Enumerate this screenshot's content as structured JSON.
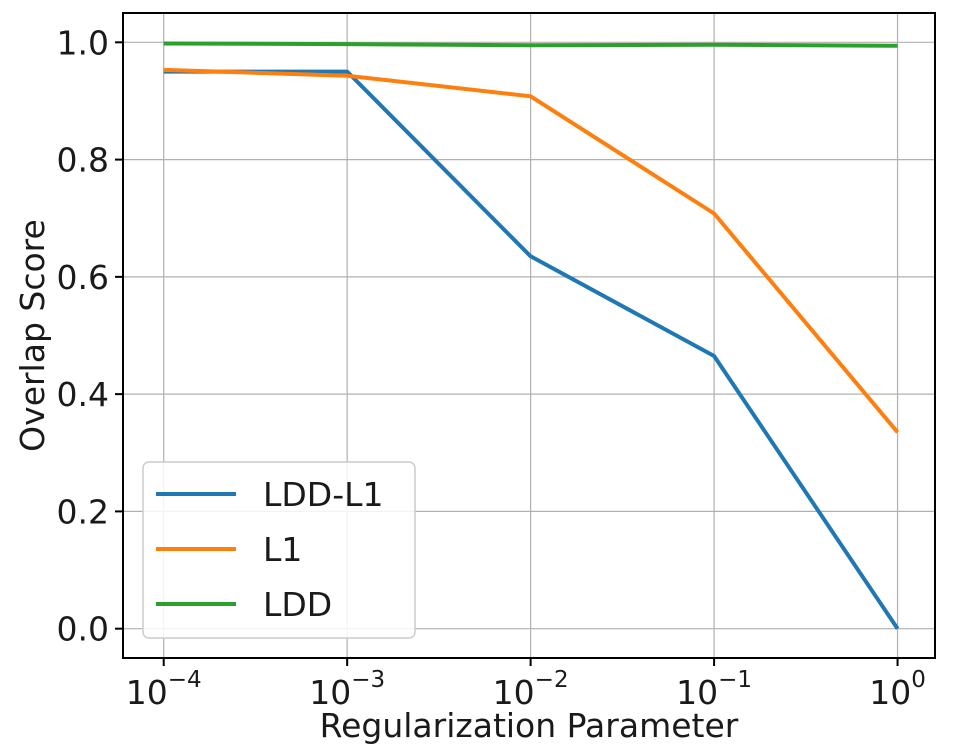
{
  "chart_data": {
    "type": "line",
    "xlabel": "Regularization Parameter",
    "ylabel": "Overlap Score",
    "xscale": "log",
    "x": [
      0.0001,
      0.001,
      0.01,
      0.1,
      1
    ],
    "xlim": [
      6e-05,
      1.6
    ],
    "ylim": [
      -0.05,
      1.05
    ],
    "x_ticks": [
      {
        "base": "10",
        "exp": "−4"
      },
      {
        "base": "10",
        "exp": "−3"
      },
      {
        "base": "10",
        "exp": "−2"
      },
      {
        "base": "10",
        "exp": "−1"
      },
      {
        "base": "10",
        "exp": "0"
      }
    ],
    "y_ticks": [
      "0.0",
      "0.2",
      "0.4",
      "0.6",
      "0.8",
      "1.0"
    ],
    "y_tick_values": [
      0.0,
      0.2,
      0.4,
      0.6,
      0.8,
      1.0
    ],
    "grid": true,
    "legend_position": "bottom-left",
    "series": [
      {
        "name": "LDD-L1",
        "color": "#1f77b4",
        "values": [
          0.95,
          0.95,
          0.635,
          0.465,
          0.0
        ]
      },
      {
        "name": "L1",
        "color": "#ff7f0e",
        "values": [
          0.953,
          0.943,
          0.908,
          0.708,
          0.335
        ]
      },
      {
        "name": "LDD",
        "color": "#2ca02c",
        "values": [
          0.998,
          0.997,
          0.995,
          0.996,
          0.994
        ]
      }
    ]
  }
}
